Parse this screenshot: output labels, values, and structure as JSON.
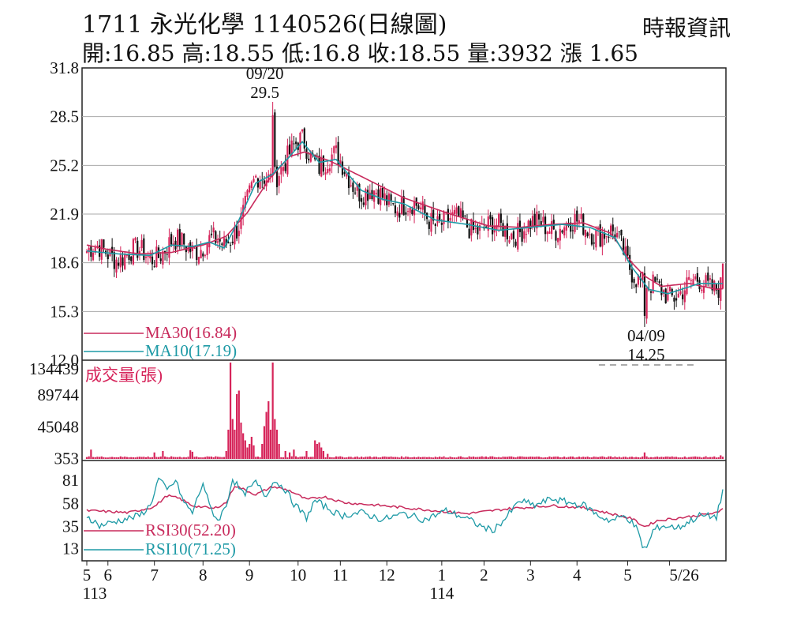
{
  "header": {
    "title": "1711  永光化學 1140526(日線圖)",
    "quote": "開:16.85 高:18.55 低:16.8 收:18.55 量:3932 漲 1.65",
    "source": "時報資訊"
  },
  "colors": {
    "up": "#d6245a",
    "down": "#111111",
    "ma30": "#c82a5c",
    "ma10": "#1e9aa6",
    "volume": "#d6245a",
    "rsi30": "#c82a5c",
    "rsi10": "#1e9aa6",
    "grid": "#aaaaaa"
  },
  "chart_data": [
    {
      "type": "candlestick",
      "title": "1711  永光化學 1140526(日線圖)",
      "ylim": [
        12.0,
        31.8
      ],
      "y_ticks": [
        "31.8",
        "28.5",
        "25.2",
        "21.9",
        "18.6",
        "15.3",
        "12.0"
      ],
      "x_month_labels": [
        "5",
        "6",
        "7",
        "8",
        "9",
        "10",
        "11",
        "12",
        "1",
        "2",
        "3",
        "4",
        "5",
        "5/26"
      ],
      "x_year_labels": [
        "113",
        "114"
      ],
      "open_high_low_close_volume_change": {
        "open": 16.85,
        "high": 18.55,
        "low": 16.8,
        "close": 18.55,
        "volume": 3932,
        "change": 1.65
      },
      "series": [
        {
          "name": "MA30",
          "legend": "MA30(16.84)",
          "last": 16.84,
          "keypoints": [
            [
              0,
              19.8
            ],
            [
              10,
              19.5
            ],
            [
              25,
              19.2
            ],
            [
              40,
              19.3
            ],
            [
              55,
              19.8
            ],
            [
              66,
              20.4
            ],
            [
              76,
              22.0
            ],
            [
              86,
              24.2
            ],
            [
              96,
              25.8
            ],
            [
              103,
              26.1
            ],
            [
              115,
              25.5
            ],
            [
              132,
              24.3
            ],
            [
              150,
              23.0
            ],
            [
              170,
              22.0
            ],
            [
              190,
              21.1
            ],
            [
              205,
              21.0
            ],
            [
              220,
              21.2
            ],
            [
              235,
              21.3
            ],
            [
              248,
              20.6
            ],
            [
              258,
              18.6
            ],
            [
              264,
              17.7
            ],
            [
              272,
              17.0
            ],
            [
              285,
              17.2
            ],
            [
              298,
              16.8
            ],
            [
              301,
              16.84
            ]
          ]
        },
        {
          "name": "MA10",
          "legend": "MA10(17.19)",
          "last": 17.19,
          "keypoints": [
            [
              0,
              19.4
            ],
            [
              15,
              19.2
            ],
            [
              30,
              19.1
            ],
            [
              40,
              19.8
            ],
            [
              50,
              19.7
            ],
            [
              58,
              20.0
            ],
            [
              65,
              19.6
            ],
            [
              72,
              21.5
            ],
            [
              80,
              24.0
            ],
            [
              88,
              24.6
            ],
            [
              96,
              25.8
            ],
            [
              102,
              26.8
            ],
            [
              110,
              25.4
            ],
            [
              118,
              25.6
            ],
            [
              130,
              23.5
            ],
            [
              140,
              22.9
            ],
            [
              150,
              22.6
            ],
            [
              165,
              21.5
            ],
            [
              180,
              21.2
            ],
            [
              195,
              20.8
            ],
            [
              210,
              21.0
            ],
            [
              225,
              21.2
            ],
            [
              238,
              21.0
            ],
            [
              250,
              20.3
            ],
            [
              258,
              18.3
            ],
            [
              266,
              16.8
            ],
            [
              275,
              16.5
            ],
            [
              290,
              17.2
            ],
            [
              301,
              17.19
            ]
          ]
        }
      ],
      "annotations": [
        {
          "label_date": "09/20",
          "label_value": "29.5",
          "type": "high",
          "index": 88,
          "value": 29.5
        },
        {
          "label_date": "04/09",
          "label_value": "14.25",
          "type": "low",
          "index": 264,
          "value": 14.25
        }
      ]
    },
    {
      "type": "bar",
      "title": "成交量(張)",
      "ylim": [
        0,
        134439
      ],
      "y_ticks": [
        "134439",
        "89744",
        "45048",
        "353"
      ],
      "spikes": [
        [
          2,
          12000
        ],
        [
          32,
          8000
        ],
        [
          36,
          10000
        ],
        [
          49,
          11000
        ],
        [
          50,
          9000
        ],
        [
          66,
          10000
        ],
        [
          67,
          40000
        ],
        [
          68,
          134439
        ],
        [
          69,
          55000
        ],
        [
          70,
          40000
        ],
        [
          71,
          90000
        ],
        [
          72,
          95000
        ],
        [
          73,
          50000
        ],
        [
          74,
          35000
        ],
        [
          75,
          25000
        ],
        [
          76,
          15000
        ],
        [
          77,
          20000
        ],
        [
          78,
          30000
        ],
        [
          79,
          18000
        ],
        [
          83,
          20000
        ],
        [
          84,
          45000
        ],
        [
          85,
          65000
        ],
        [
          86,
          80000
        ],
        [
          87,
          40000
        ],
        [
          88,
          134439
        ],
        [
          89,
          55000
        ],
        [
          90,
          40000
        ],
        [
          91,
          20000
        ],
        [
          94,
          10000
        ],
        [
          96,
          8000
        ],
        [
          98,
          12000
        ],
        [
          104,
          10000
        ],
        [
          108,
          25000
        ],
        [
          109,
          20000
        ],
        [
          110,
          22000
        ],
        [
          111,
          15000
        ],
        [
          112,
          10000
        ],
        [
          114,
          6000
        ],
        [
          264,
          8000
        ],
        [
          300,
          3932
        ]
      ]
    },
    {
      "type": "line",
      "title": "RSI",
      "ylim": [
        0,
        100
      ],
      "y_ticks": [
        "81",
        "58",
        "35",
        "13"
      ],
      "series": [
        {
          "name": "RSI30",
          "legend": "RSI30(52.20)",
          "last": 52.2,
          "keypoints": [
            [
              0,
              50
            ],
            [
              20,
              48
            ],
            [
              32,
              54
            ],
            [
              38,
              65
            ],
            [
              44,
              62
            ],
            [
              50,
              55
            ],
            [
              60,
              52
            ],
            [
              66,
              58
            ],
            [
              70,
              75
            ],
            [
              80,
              66
            ],
            [
              88,
              74
            ],
            [
              96,
              70
            ],
            [
              104,
              61
            ],
            [
              112,
              64
            ],
            [
              122,
              58
            ],
            [
              140,
              55
            ],
            [
              160,
              51
            ],
            [
              180,
              47
            ],
            [
              200,
              52
            ],
            [
              220,
              55
            ],
            [
              235,
              53
            ],
            [
              248,
              47
            ],
            [
              258,
              42
            ],
            [
              264,
              34
            ],
            [
              270,
              40
            ],
            [
              285,
              44
            ],
            [
              299,
              48
            ],
            [
              301,
              52.2
            ]
          ]
        },
        {
          "name": "RSI10",
          "legend": "RSI10(71.25)",
          "last": 71.25,
          "keypoints": [
            [
              0,
              45
            ],
            [
              6,
              35
            ],
            [
              15,
              40
            ],
            [
              25,
              45
            ],
            [
              30,
              55
            ],
            [
              34,
              82
            ],
            [
              38,
              70
            ],
            [
              42,
              80
            ],
            [
              46,
              58
            ],
            [
              50,
              48
            ],
            [
              55,
              78
            ],
            [
              58,
              55
            ],
            [
              62,
              40
            ],
            [
              66,
              55
            ],
            [
              69,
              82
            ],
            [
              74,
              66
            ],
            [
              80,
              78
            ],
            [
              85,
              64
            ],
            [
              88,
              80
            ],
            [
              93,
              74
            ],
            [
              98,
              57
            ],
            [
              104,
              43
            ],
            [
              108,
              60
            ],
            [
              112,
              55
            ],
            [
              120,
              45
            ],
            [
              130,
              48
            ],
            [
              140,
              41
            ],
            [
              150,
              47
            ],
            [
              160,
              41
            ],
            [
              170,
              50
            ],
            [
              180,
              42
            ],
            [
              186,
              35
            ],
            [
              192,
              30
            ],
            [
              198,
              42
            ],
            [
              205,
              60
            ],
            [
              212,
              55
            ],
            [
              220,
              62
            ],
            [
              228,
              58
            ],
            [
              236,
              55
            ],
            [
              242,
              45
            ],
            [
              248,
              40
            ],
            [
              255,
              45
            ],
            [
              260,
              33
            ],
            [
              263,
              15
            ],
            [
              265,
              12
            ],
            [
              268,
              30
            ],
            [
              272,
              35
            ],
            [
              280,
              33
            ],
            [
              290,
              45
            ],
            [
              298,
              44
            ],
            [
              300,
              60
            ],
            [
              301,
              71.25
            ]
          ]
        }
      ]
    }
  ]
}
